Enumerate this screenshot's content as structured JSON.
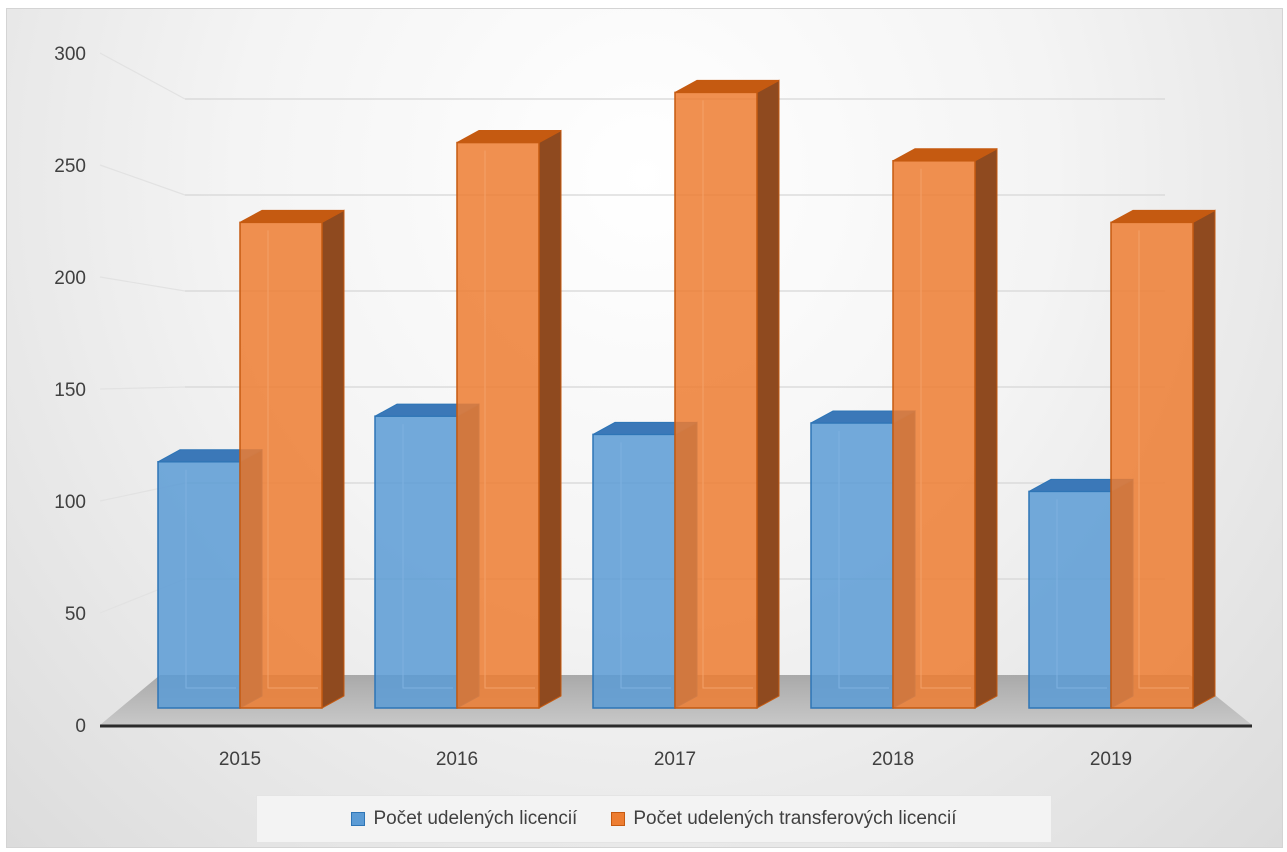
{
  "chart_data": {
    "type": "bar",
    "categories": [
      "2015",
      "2016",
      "2017",
      "2018",
      "2019"
    ],
    "series": [
      {
        "name": "Počet udelených licencií",
        "values": [
          108,
          128,
          120,
          125,
          95
        ],
        "color": "#5b9bd5"
      },
      {
        "name": "Počet udelených transferových licencií",
        "values": [
          213,
          248,
          270,
          240,
          213
        ],
        "color": "#ed7d31"
      }
    ],
    "y_ticks": [
      "0",
      "50",
      "100",
      "150",
      "200",
      "250",
      "300"
    ],
    "ylim": [
      0,
      300
    ],
    "grid": true,
    "legend_position": "bottom",
    "style": "3d-clustered-column"
  }
}
